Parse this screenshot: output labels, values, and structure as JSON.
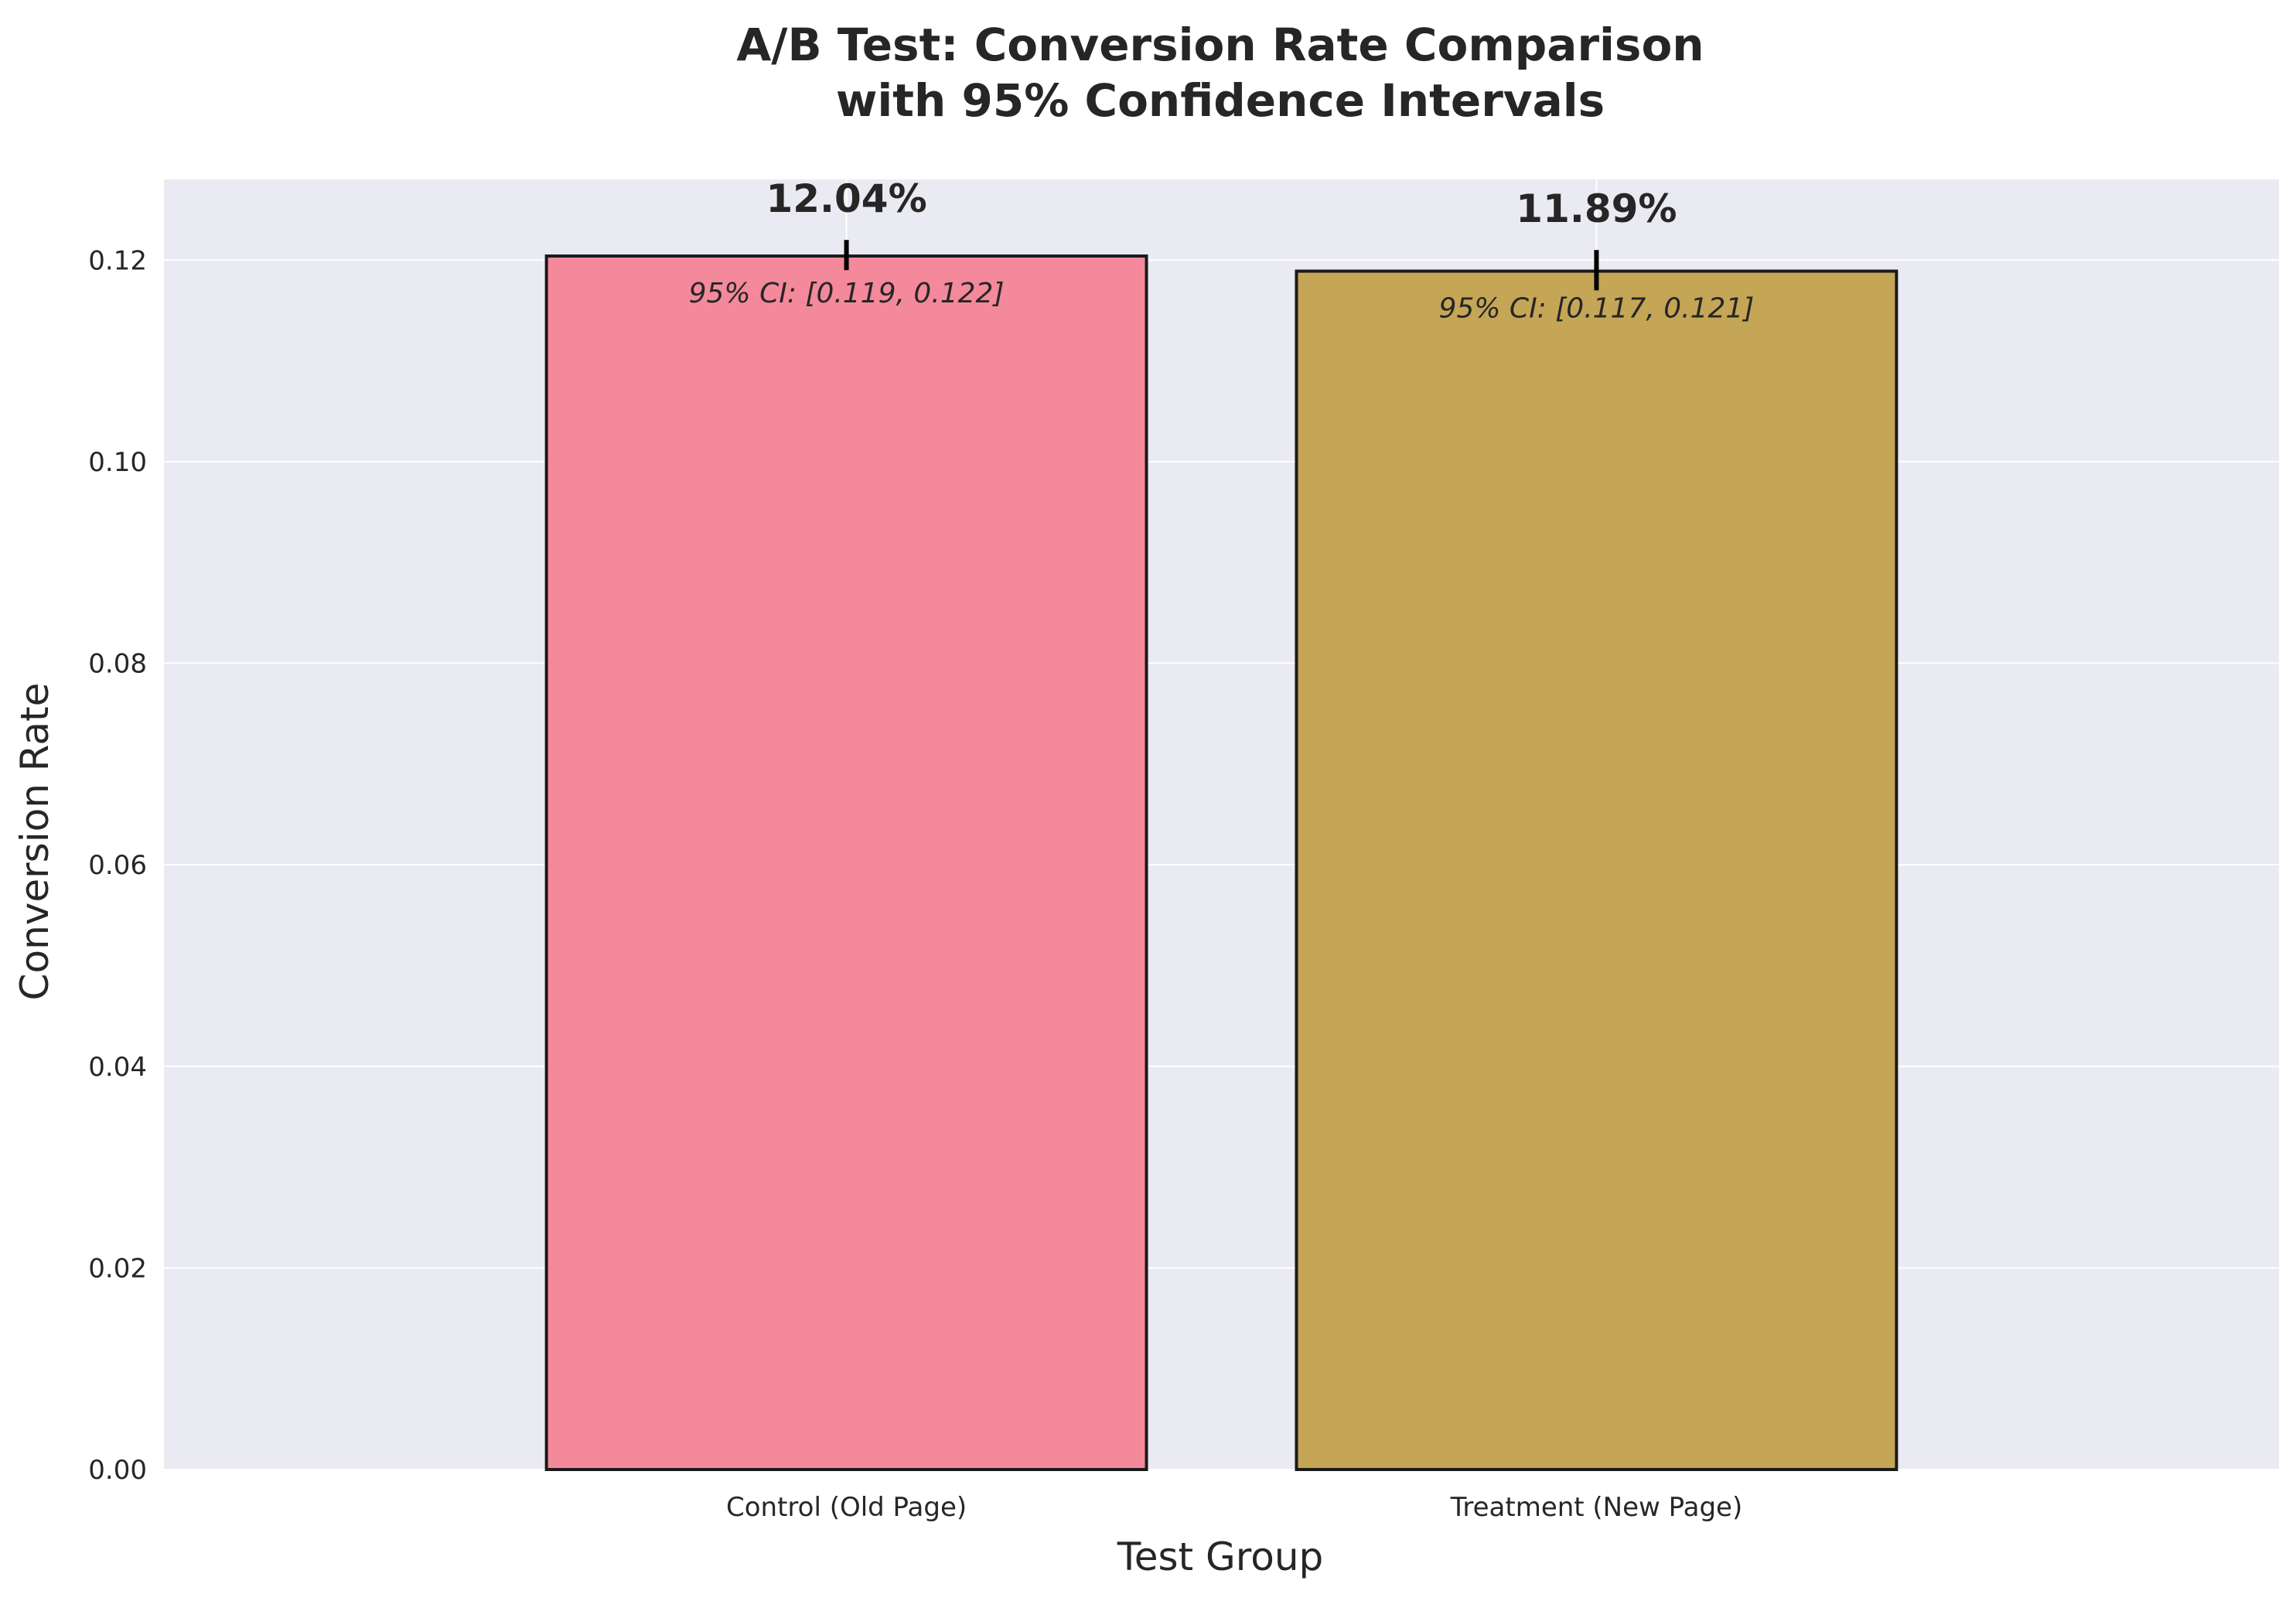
{
  "chart_data": {
    "type": "bar",
    "title": [
      "A/B Test: Conversion Rate Comparison",
      "with 95% Confidence Intervals"
    ],
    "xlabel": "Test Group",
    "ylabel": "Conversion Rate",
    "categories": [
      "Control (Old Page)",
      "Treatment (New Page)"
    ],
    "values": [
      0.1204,
      0.1189
    ],
    "ci_lower": [
      0.119,
      0.117
    ],
    "ci_upper": [
      0.122,
      0.121
    ],
    "value_labels": [
      "12.04%",
      "11.89%"
    ],
    "ci_labels": [
      "95% CI: [0.119, 0.122]",
      "95% CI: [0.117, 0.121]"
    ],
    "colors": [
      "#f4899c",
      "#c4a656"
    ],
    "ylim": [
      0,
      0.128
    ],
    "yticks": [
      0.0,
      0.02,
      0.04,
      0.06,
      0.08,
      0.1,
      0.12
    ],
    "ytick_labels": [
      "0.00",
      "0.02",
      "0.04",
      "0.06",
      "0.08",
      "0.10",
      "0.12"
    ],
    "grid": true,
    "background": "#eaeaf2"
  }
}
